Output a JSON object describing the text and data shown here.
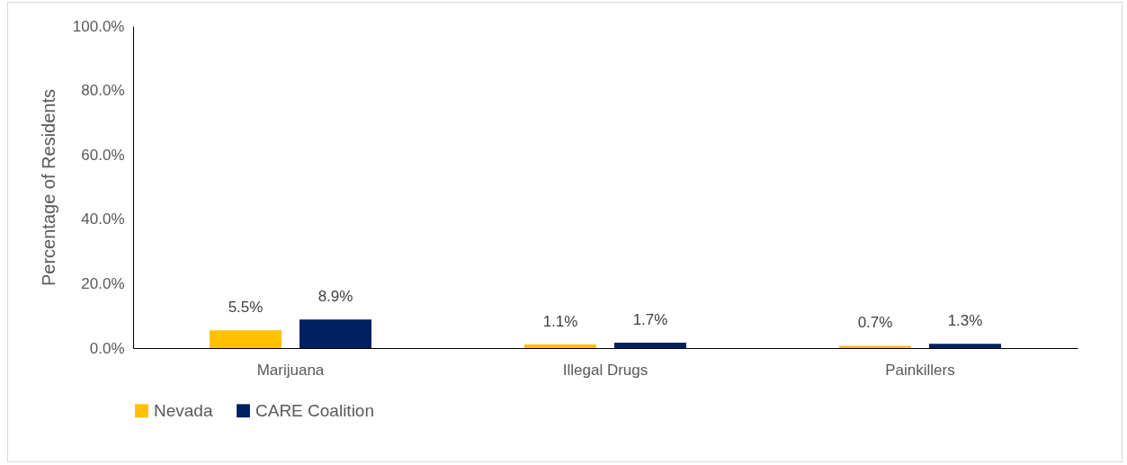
{
  "chart_data": {
    "type": "bar",
    "categories": [
      "Marijuana",
      "Illegal Drugs",
      "Painkillers"
    ],
    "ylabel": "Percentage of Residents",
    "series": [
      {
        "name": "Nevada",
        "color": "#ffc000",
        "values": [
          5.5,
          1.1,
          0.7
        ],
        "value_labels": [
          "5.5%",
          "1.1%",
          "0.7%"
        ]
      },
      {
        "name": "CARE Coalition",
        "color": "#002060",
        "values": [
          8.9,
          1.7,
          1.3
        ],
        "value_labels": [
          "8.9%",
          "1.7%",
          "1.3%"
        ]
      }
    ],
    "ylim": [
      0,
      100
    ],
    "yticks": [
      {
        "value": 0,
        "label": "0.0%"
      },
      {
        "value": 20,
        "label": "20.0%"
      },
      {
        "value": 40,
        "label": "40.0%"
      },
      {
        "value": 60,
        "label": "60.0%"
      },
      {
        "value": 80,
        "label": "80.0%"
      },
      {
        "value": 100,
        "label": "100.0%"
      }
    ],
    "grid": false,
    "legend": "bottom"
  }
}
